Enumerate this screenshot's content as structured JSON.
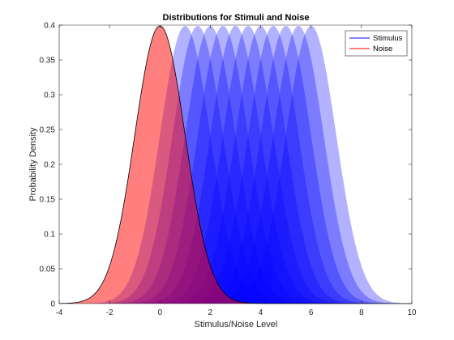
{
  "chart_data": {
    "type": "area",
    "title": "Distributions for Stimuli and Noise",
    "xlabel": "Stimulus/Noise Level",
    "ylabel": "Probability Density",
    "xlim": [
      -4,
      10
    ],
    "ylim": [
      0,
      0.4
    ],
    "x_ticks": [
      "-4",
      "-2",
      "0",
      "2",
      "4",
      "6",
      "8",
      "10"
    ],
    "y_ticks": [
      "0",
      "0.05",
      "0.1",
      "0.15",
      "0.2",
      "0.25",
      "0.3",
      "0.35",
      "0.4"
    ],
    "x_tick_values": [
      -4,
      -2,
      0,
      2,
      4,
      6,
      8,
      10
    ],
    "y_tick_values": [
      0,
      0.05,
      0.1,
      0.15,
      0.2,
      0.25,
      0.3,
      0.35,
      0.4
    ],
    "grid": false,
    "legend_position": "top-right",
    "series": [
      {
        "name": "Stimulus",
        "distribution": "normal",
        "sd": 1,
        "means": [
          1.0,
          1.5,
          2.0,
          2.5,
          3.0,
          3.5,
          4.0,
          4.5,
          5.0,
          5.5,
          6.0
        ],
        "color": "#0000ff",
        "fill_opacity": 0.3
      },
      {
        "name": "Noise",
        "distribution": "normal",
        "sd": 1,
        "means": [
          0
        ],
        "color": "#ff0000",
        "fill_opacity": 0.5,
        "outline_color": "#000000"
      }
    ]
  }
}
